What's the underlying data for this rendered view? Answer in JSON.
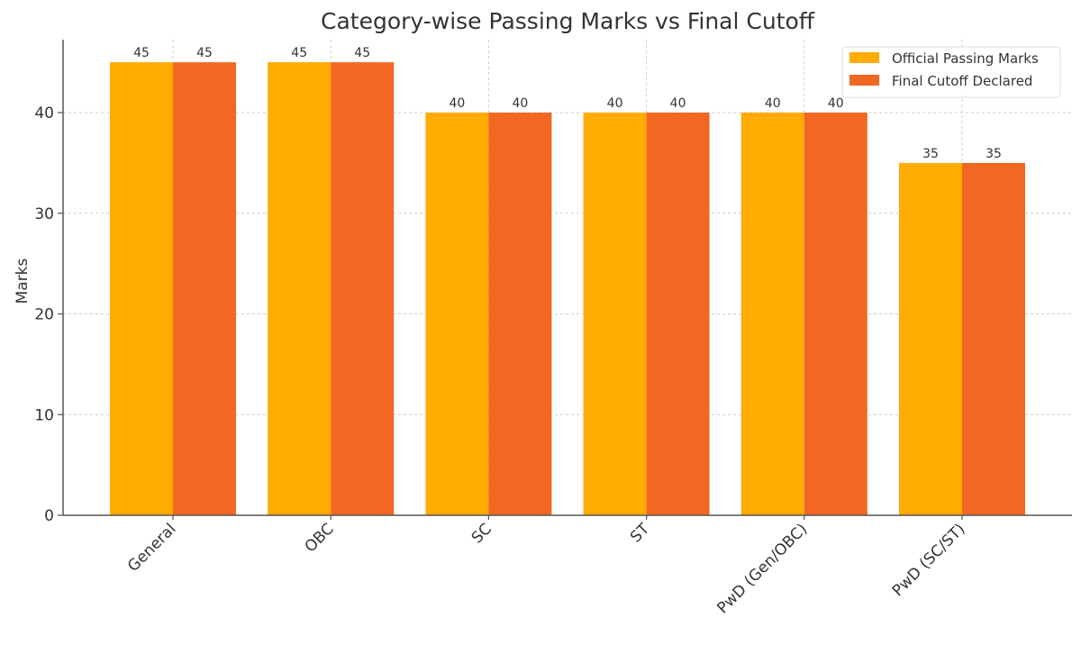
{
  "chart_data": {
    "type": "bar",
    "title": "Category-wise Passing Marks vs Final Cutoff",
    "xlabel": "",
    "ylabel": "Marks",
    "ylim": [
      0,
      47.25
    ],
    "yticks": [
      0,
      10,
      20,
      30,
      40
    ],
    "grid": true,
    "legend_position": "upper right",
    "categories": [
      "General",
      "OBC",
      "SC",
      "ST",
      "PwD (Gen/OBC)",
      "PwD (SC/ST)"
    ],
    "series": [
      {
        "name": "Official Passing Marks",
        "color": "#FFAB00",
        "values": [
          45,
          45,
          40,
          40,
          40,
          35
        ]
      },
      {
        "name": "Final Cutoff Declared",
        "color": "#F26722",
        "values": [
          45,
          45,
          40,
          40,
          40,
          35
        ]
      }
    ]
  }
}
